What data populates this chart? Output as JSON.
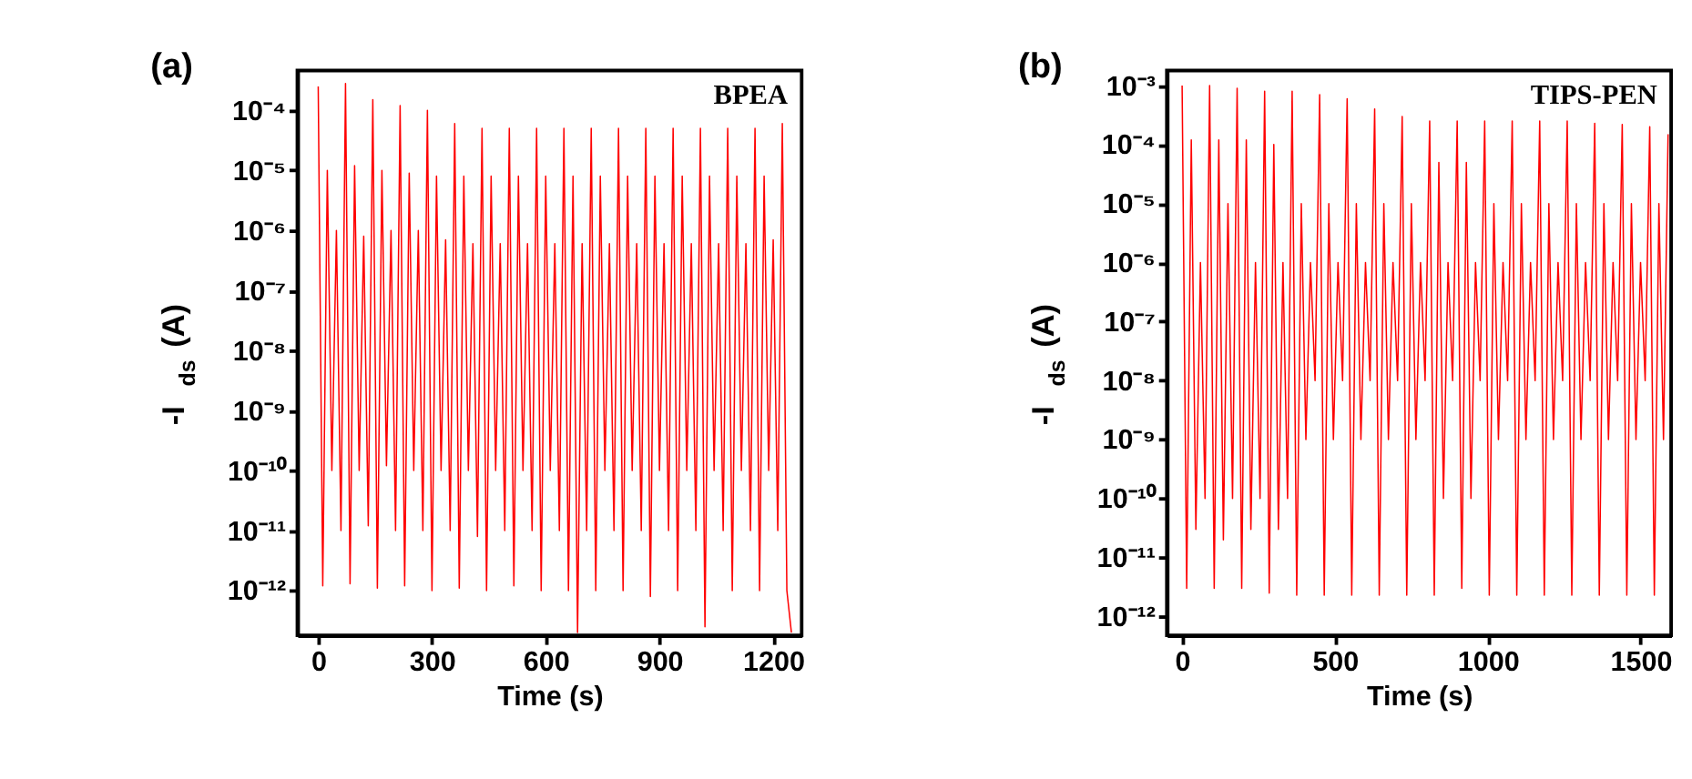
{
  "chart_data": [
    {
      "type": "line",
      "xlabel": "Time (s)",
      "ylabel": "-I$_{ds}$ (A)",
      "annotations": [
        "(a)",
        "BPEA"
      ],
      "log": "y",
      "grid": false,
      "xlim": [
        -55,
        1275
      ],
      "xticks": [
        0,
        300,
        600,
        900,
        1200
      ],
      "ylim": [
        1.8e-13,
        0.00046
      ],
      "yticks": [
        {
          "value": 1e-12,
          "label": "10⁻¹²"
        },
        {
          "value": 1e-11,
          "label": "10⁻¹¹"
        },
        {
          "value": 1e-10,
          "label": "10⁻¹⁰"
        },
        {
          "value": 1e-09,
          "label": "10⁻⁹"
        },
        {
          "value": 1e-08,
          "label": "10⁻⁸"
        },
        {
          "value": 1e-07,
          "label": "10⁻⁷"
        },
        {
          "value": 1e-06,
          "label": "10⁻⁶"
        },
        {
          "value": 1e-05,
          "label": "10⁻⁵"
        },
        {
          "value": 0.0001,
          "label": "10⁻⁴"
        }
      ],
      "x": [
        0,
        12,
        24,
        36,
        48,
        60,
        72,
        84,
        96,
        108,
        120,
        132,
        144,
        156,
        168,
        180,
        192,
        204,
        216,
        228,
        240,
        252,
        264,
        276,
        288,
        300,
        312,
        324,
        336,
        348,
        360,
        372,
        384,
        396,
        408,
        420,
        432,
        444,
        456,
        468,
        480,
        492,
        504,
        516,
        528,
        540,
        552,
        564,
        576,
        588,
        600,
        612,
        624,
        636,
        648,
        660,
        672,
        684,
        696,
        708,
        720,
        732,
        744,
        756,
        768,
        780,
        792,
        804,
        816,
        828,
        840,
        852,
        864,
        876,
        888,
        900,
        912,
        924,
        936,
        948,
        960,
        972,
        984,
        996,
        1008,
        1020,
        1032,
        1044,
        1056,
        1068,
        1080,
        1092,
        1104,
        1116,
        1128,
        1140,
        1152,
        1164,
        1176,
        1188,
        1200,
        1212,
        1224,
        1236,
        1248
      ],
      "series": [
        {
          "color": "#ff0000",
          "values": [
            0.00025,
            1.2e-12,
            1e-05,
            1e-10,
            1e-06,
            1e-11,
            0.00028,
            1.3e-12,
            1.2e-05,
            1e-10,
            8e-07,
            1.2e-11,
            0.00015,
            1.1e-12,
            1e-05,
            1.2e-10,
            1e-06,
            1e-11,
            0.00012,
            1.2e-12,
            9e-06,
            1e-10,
            1e-06,
            1e-11,
            0.0001,
            1e-12,
            8e-06,
            1e-10,
            7e-07,
            1e-11,
            6e-05,
            1.1e-12,
            8e-06,
            1e-10,
            6e-07,
            8e-12,
            5e-05,
            1e-12,
            8e-06,
            1e-10,
            6e-07,
            1e-11,
            5e-05,
            1.2e-12,
            8e-06,
            1e-10,
            6e-07,
            1e-11,
            5e-05,
            1e-12,
            8e-06,
            1e-10,
            6e-07,
            1e-11,
            5e-05,
            1e-12,
            8e-06,
            2e-13,
            6e-07,
            1e-11,
            5e-05,
            1e-12,
            8e-06,
            1e-10,
            6e-07,
            1e-11,
            5e-05,
            1e-12,
            8e-06,
            1e-10,
            6e-07,
            1e-11,
            5e-05,
            8e-13,
            8e-06,
            1e-10,
            6e-07,
            1e-11,
            5e-05,
            1e-12,
            8e-06,
            1e-10,
            6e-07,
            1e-11,
            5e-05,
            2.5e-13,
            8e-06,
            1e-10,
            6e-07,
            1e-11,
            5e-05,
            1e-12,
            8e-06,
            1e-10,
            6e-07,
            1e-11,
            5e-05,
            1e-12,
            8e-06,
            1e-10,
            7e-07,
            1e-11,
            6e-05,
            1e-12,
            2e-13
          ]
        }
      ]
    },
    {
      "type": "line",
      "xlabel": "Time (s)",
      "ylabel": "-I$_{ds}$ (A)",
      "annotations": [
        "(b)",
        "TIPS-PEN"
      ],
      "log": "y",
      "grid": false,
      "xlim": [
        -50,
        1600
      ],
      "xticks": [
        0,
        500,
        1000,
        1500
      ],
      "ylim": [
        4.8e-13,
        0.0018
      ],
      "yticks": [
        {
          "value": 1e-12,
          "label": "10⁻¹²"
        },
        {
          "value": 1e-11,
          "label": "10⁻¹¹"
        },
        {
          "value": 1e-10,
          "label": "10⁻¹⁰"
        },
        {
          "value": 1e-09,
          "label": "10⁻⁹"
        },
        {
          "value": 1e-08,
          "label": "10⁻⁸"
        },
        {
          "value": 1e-07,
          "label": "10⁻⁷"
        },
        {
          "value": 1e-06,
          "label": "10⁻⁶"
        },
        {
          "value": 1e-05,
          "label": "10⁻⁵"
        },
        {
          "value": 0.0001,
          "label": "10⁻⁴"
        },
        {
          "value": 0.001,
          "label": "10⁻³"
        }
      ],
      "x": [
        0,
        15,
        30,
        45,
        60,
        75,
        90,
        105,
        120,
        135,
        150,
        165,
        180,
        195,
        210,
        225,
        240,
        255,
        270,
        285,
        300,
        315,
        330,
        345,
        360,
        375,
        390,
        405,
        420,
        435,
        450,
        465,
        480,
        495,
        510,
        525,
        540,
        555,
        570,
        585,
        600,
        615,
        630,
        645,
        660,
        675,
        690,
        705,
        720,
        735,
        750,
        765,
        780,
        795,
        810,
        825,
        840,
        855,
        870,
        885,
        900,
        915,
        930,
        945,
        960,
        975,
        990,
        1005,
        1020,
        1035,
        1050,
        1065,
        1080,
        1095,
        1110,
        1125,
        1140,
        1155,
        1170,
        1185,
        1200,
        1215,
        1230,
        1245,
        1260,
        1275,
        1290,
        1305,
        1320,
        1335,
        1350,
        1365,
        1380,
        1395,
        1410,
        1425,
        1440,
        1455,
        1470,
        1485,
        1500,
        1515,
        1530,
        1545,
        1560,
        1575,
        1590
      ],
      "series": [
        {
          "color": "#ff0000",
          "values": [
            0.001,
            3e-12,
            0.00012,
            3e-11,
            1e-06,
            1e-10,
            0.001,
            3e-12,
            0.00012,
            2e-11,
            1e-05,
            1e-10,
            0.0009,
            3e-12,
            0.00012,
            3e-11,
            1e-06,
            1e-10,
            0.0008,
            2.5e-12,
            0.0001,
            3e-11,
            1e-06,
            1e-10,
            0.0008,
            2.3e-12,
            1e-05,
            1e-09,
            1e-06,
            1e-08,
            0.0007,
            2.3e-12,
            1e-05,
            1e-09,
            1e-06,
            1e-08,
            0.0006,
            2.3e-12,
            1e-05,
            1e-09,
            1e-06,
            1e-08,
            0.0004,
            2.3e-12,
            1e-05,
            1e-09,
            1e-06,
            1e-08,
            0.0003,
            2.3e-12,
            1e-05,
            1e-09,
            1e-06,
            1e-08,
            0.00025,
            2.3e-12,
            5e-05,
            1e-10,
            1e-06,
            1e-08,
            0.00025,
            3e-12,
            5e-05,
            1e-10,
            1e-06,
            1e-08,
            0.00025,
            2.3e-12,
            1e-05,
            1e-09,
            1e-06,
            1e-08,
            0.00025,
            2.3e-12,
            1e-05,
            1e-09,
            1e-06,
            1e-08,
            0.00025,
            2.3e-12,
            1e-05,
            1e-09,
            1e-06,
            1e-08,
            0.00025,
            2.3e-12,
            1e-05,
            1e-09,
            1e-06,
            1e-08,
            0.00023,
            2.3e-12,
            1e-05,
            1e-09,
            1e-06,
            1e-08,
            0.00022,
            2.3e-12,
            1e-05,
            1e-09,
            1e-06,
            1e-08,
            0.0002,
            2.3e-12,
            1e-05,
            1e-09,
            0.00015
          ]
        }
      ]
    }
  ]
}
